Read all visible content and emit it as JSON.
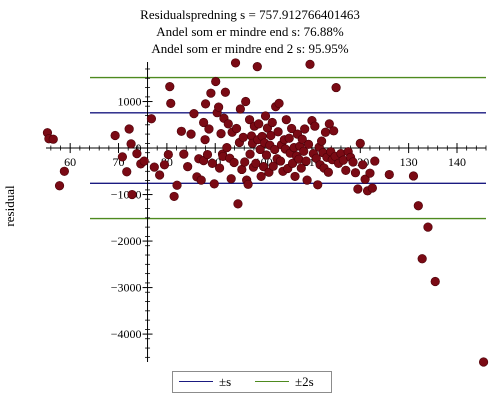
{
  "chart_data": {
    "type": "scatter",
    "title_lines": [
      "Residualspredning s = 757.912766401463",
      "Andel som er mindre end s: 76.88%",
      "Andel som er mindre end 2 s: 95.95%"
    ],
    "ylabel": "residual",
    "xlabel": "",
    "xlim": [
      55,
      146
    ],
    "ylim": [
      -4600,
      1850
    ],
    "x_ticks": [
      60,
      70,
      80,
      90,
      100,
      110,
      120,
      130,
      140
    ],
    "y_ticks": [
      1000,
      0,
      -1000,
      -2000,
      -3000,
      -4000
    ],
    "y_tick_labels": [
      "1000",
      "0",
      "−1000",
      "−2000",
      "−3000",
      "−4000"
    ],
    "grid": false,
    "s": 757.912766401463,
    "lines": [
      {
        "name": "±s",
        "values": [
          757.91,
          -757.91
        ],
        "color": "#1a1a80"
      },
      {
        "name": "±2s",
        "values": [
          1515.83,
          -1515.83
        ],
        "color": "#4e8a1f"
      }
    ],
    "point_color": "#7a0a14",
    "points": [
      [
        55.3,
        330
      ],
      [
        55.6,
        200
      ],
      [
        56.5,
        190
      ],
      [
        57.8,
        -810
      ],
      [
        58.8,
        -500
      ],
      [
        69.3,
        270
      ],
      [
        70.8,
        -190
      ],
      [
        71.7,
        -510
      ],
      [
        72.2,
        410
      ],
      [
        72.6,
        90
      ],
      [
        72.8,
        -1000
      ],
      [
        73.8,
        -120
      ],
      [
        74.6,
        -340
      ],
      [
        75.3,
        -280
      ],
      [
        76.8,
        630
      ],
      [
        77.4,
        -410
      ],
      [
        78.5,
        -580
      ],
      [
        79.5,
        -360
      ],
      [
        80.3,
        -140
      ],
      [
        80.6,
        1320
      ],
      [
        80.8,
        960
      ],
      [
        81.5,
        -1040
      ],
      [
        82.1,
        -800
      ],
      [
        83.0,
        360
      ],
      [
        83.5,
        -130
      ],
      [
        84.3,
        -400
      ],
      [
        85.0,
        300
      ],
      [
        85.6,
        740
      ],
      [
        86.2,
        -620
      ],
      [
        86.6,
        -230
      ],
      [
        87.1,
        -690
      ],
      [
        87.6,
        550
      ],
      [
        87.6,
        -270
      ],
      [
        87.9,
        180
      ],
      [
        88.0,
        950
      ],
      [
        88.4,
        -140
      ],
      [
        88.7,
        410
      ],
      [
        89.1,
        1180
      ],
      [
        89.4,
        -330
      ],
      [
        89.8,
        -770
      ],
      [
        90.1,
        1430
      ],
      [
        90.4,
        760
      ],
      [
        90.7,
        880
      ],
      [
        90.9,
        -430
      ],
      [
        91.2,
        310
      ],
      [
        91.5,
        -130
      ],
      [
        91.6,
        -180
      ],
      [
        91.8,
        640
      ],
      [
        92.1,
        1200
      ],
      [
        92.4,
        10
      ],
      [
        92.7,
        520
      ],
      [
        93.0,
        -220
      ],
      [
        93.3,
        -660
      ],
      [
        93.5,
        340
      ],
      [
        93.9,
        -310
      ],
      [
        94.2,
        1830
      ],
      [
        94.4,
        420
      ],
      [
        94.7,
        -1200
      ],
      [
        95.0,
        120
      ],
      [
        95.2,
        840
      ],
      [
        95.5,
        -460
      ],
      [
        95.8,
        230
      ],
      [
        96.1,
        -300
      ],
      [
        96.3,
        1000
      ],
      [
        96.5,
        -690
      ],
      [
        96.8,
        -780
      ],
      [
        97.1,
        610
      ],
      [
        97.2,
        -130
      ],
      [
        97.5,
        260
      ],
      [
        97.7,
        100
      ],
      [
        97.9,
        -410
      ],
      [
        98.1,
        470
      ],
      [
        98.4,
        -330
      ],
      [
        98.7,
        1750
      ],
      [
        98.8,
        180
      ],
      [
        99.0,
        520
      ],
      [
        99.3,
        -30
      ],
      [
        99.5,
        -610
      ],
      [
        99.7,
        250
      ],
      [
        100.0,
        -400
      ],
      [
        100.2,
        110
      ],
      [
        100.4,
        690
      ],
      [
        100.6,
        -150
      ],
      [
        100.8,
        430
      ],
      [
        101.1,
        -520
      ],
      [
        101.3,
        60
      ],
      [
        101.5,
        270
      ],
      [
        101.8,
        550
      ],
      [
        102.0,
        -390
      ],
      [
        102.3,
        -30
      ],
      [
        102.5,
        890
      ],
      [
        102.8,
        -230
      ],
      [
        103.0,
        350
      ],
      [
        103.2,
        960
      ],
      [
        103.5,
        -280
      ],
      [
        103.7,
        70
      ],
      [
        104.0,
        -500
      ],
      [
        104.3,
        180
      ],
      [
        104.5,
        -20
      ],
      [
        104.7,
        610
      ],
      [
        105.0,
        -440
      ],
      [
        105.3,
        210
      ],
      [
        105.5,
        -110
      ],
      [
        105.8,
        420
      ],
      [
        106.0,
        -330
      ],
      [
        106.3,
        10
      ],
      [
        106.5,
        -610
      ],
      [
        106.8,
        -170
      ],
      [
        107.0,
        300
      ],
      [
        107.3,
        -240
      ],
      [
        107.5,
        40
      ],
      [
        107.8,
        -430
      ],
      [
        108.0,
        190
      ],
      [
        108.3,
        -70
      ],
      [
        108.5,
        410
      ],
      [
        108.8,
        -280
      ],
      [
        109.0,
        -690
      ],
      [
        109.3,
        80
      ],
      [
        109.6,
        1800
      ],
      [
        110.0,
        590
      ],
      [
        110.3,
        -120
      ],
      [
        110.6,
        470
      ],
      [
        110.9,
        -220
      ],
      [
        111.2,
        -790
      ],
      [
        111.5,
        20
      ],
      [
        111.7,
        -360
      ],
      [
        112.0,
        150
      ],
      [
        112.3,
        -100
      ],
      [
        112.5,
        -430
      ],
      [
        112.8,
        340
      ],
      [
        113.1,
        -200
      ],
      [
        113.4,
        -520
      ],
      [
        113.6,
        520
      ],
      [
        113.9,
        -80
      ],
      [
        114.2,
        -250
      ],
      [
        114.5,
        370
      ],
      [
        114.8,
        -180
      ],
      [
        115.0,
        1300
      ],
      [
        115.5,
        -330
      ],
      [
        116.0,
        -120
      ],
      [
        116.5,
        -260
      ],
      [
        117.0,
        -480
      ],
      [
        117.5,
        -80
      ],
      [
        118.0,
        -200
      ],
      [
        118.5,
        -300
      ],
      [
        119.0,
        -530
      ],
      [
        119.5,
        -880
      ],
      [
        120.0,
        100
      ],
      [
        120.5,
        -360
      ],
      [
        121.0,
        -670
      ],
      [
        121.5,
        -920
      ],
      [
        122.0,
        -540
      ],
      [
        122.5,
        -860
      ],
      [
        123.0,
        -280
      ],
      [
        126.0,
        -570
      ],
      [
        131.0,
        -600
      ],
      [
        132.0,
        -1240
      ],
      [
        132.8,
        -2380
      ],
      [
        134.0,
        -1700
      ],
      [
        135.5,
        -2870
      ],
      [
        145.5,
        -4600
      ]
    ]
  },
  "legend": {
    "items": [
      {
        "label": "±s",
        "color": "#1a1a80"
      },
      {
        "label": "±2s",
        "color": "#4e8a1f"
      }
    ]
  }
}
